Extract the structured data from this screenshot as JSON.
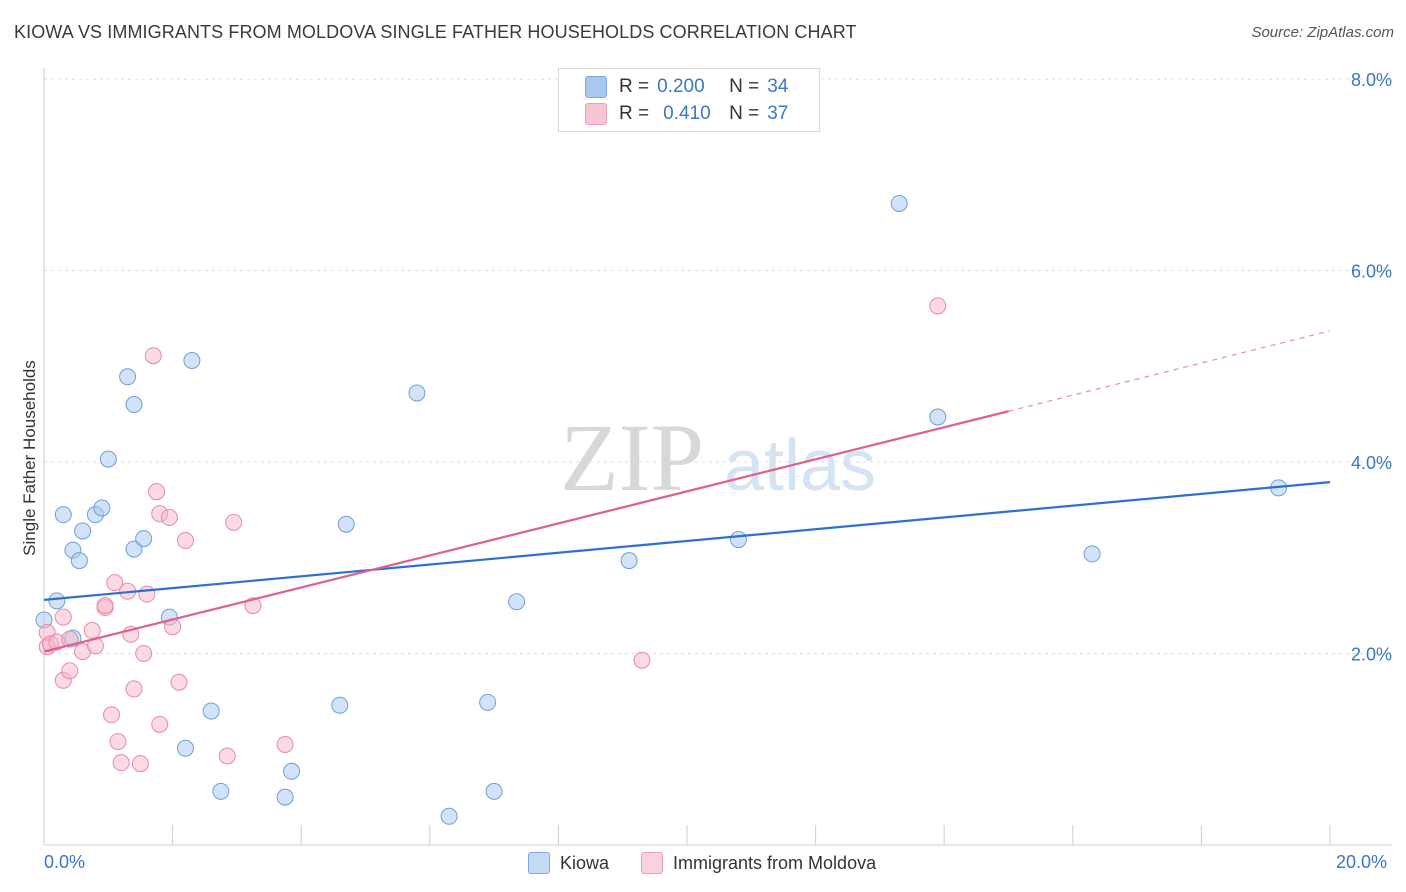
{
  "title": "KIOWA VS IMMIGRANTS FROM MOLDOVA SINGLE FATHER HOUSEHOLDS CORRELATION CHART",
  "source": "Source: ZipAtlas.com",
  "watermark": {
    "zip": "ZIP",
    "atlas": "atlas"
  },
  "legend": {
    "rows": [
      {
        "r_label": "R =",
        "r": "0.200",
        "n_label": "N =",
        "n": "34",
        "color": "#a8c8f0"
      },
      {
        "r_label": "R =",
        "r": "0.410",
        "n_label": "N =",
        "n": "37",
        "color": "#f7b6c8"
      }
    ]
  },
  "bottom_legend": [
    {
      "label": "Kiowa",
      "color": "#a8c8f0"
    },
    {
      "label": "Immigrants from Moldova",
      "color": "#f7b6c8"
    }
  ],
  "x_axis_labels": {
    "min": "0.0%",
    "max": "20.0%"
  },
  "chart_data": {
    "type": "scatter",
    "title": "KIOWA VS IMMIGRANTS FROM MOLDOVA SINGLE FATHER HOUSEHOLDS CORRELATION CHART",
    "xlabel": "",
    "ylabel": "Single Father Households",
    "xlim": [
      0,
      20
    ],
    "ylim": [
      0,
      8
    ],
    "y_ticks": [
      {
        "value": 2,
        "label": "2.0%"
      },
      {
        "value": 4,
        "label": "4.0%"
      },
      {
        "value": 6,
        "label": "6.0%"
      },
      {
        "value": 8,
        "label": "8.0%"
      }
    ],
    "grid": true,
    "series": [
      {
        "name": "Kiowa",
        "color": "#a8c8f0",
        "stroke": "#6f9fd8",
        "line_color": "#2e6fd0",
        "trend": {
          "x0": 0,
          "y0": 2.56,
          "x1": 20,
          "y1": 3.79
        },
        "points": [
          [
            0.2,
            2.55
          ],
          [
            0.0,
            2.35
          ],
          [
            0.3,
            3.45
          ],
          [
            0.6,
            3.28
          ],
          [
            0.45,
            3.08
          ],
          [
            0.8,
            3.45
          ],
          [
            0.55,
            2.97
          ],
          [
            0.9,
            3.52
          ],
          [
            1.4,
            3.09
          ],
          [
            1.55,
            3.2
          ],
          [
            1.0,
            4.03
          ],
          [
            1.4,
            4.6
          ],
          [
            1.3,
            4.89
          ],
          [
            2.3,
            5.06
          ],
          [
            1.95,
            2.38
          ],
          [
            0.45,
            2.16
          ],
          [
            2.6,
            1.4
          ],
          [
            2.2,
            1.01
          ],
          [
            2.75,
            0.56
          ],
          [
            3.75,
            0.5
          ],
          [
            3.85,
            0.77
          ],
          [
            4.6,
            1.46
          ],
          [
            4.7,
            3.35
          ],
          [
            5.8,
            4.72
          ],
          [
            6.3,
            0.3
          ],
          [
            6.9,
            1.49
          ],
          [
            7.0,
            0.56
          ],
          [
            7.35,
            2.54
          ],
          [
            9.1,
            2.97
          ],
          [
            10.8,
            3.19
          ],
          [
            13.3,
            6.7
          ],
          [
            13.9,
            4.47
          ],
          [
            16.3,
            3.04
          ],
          [
            19.2,
            3.73
          ]
        ]
      },
      {
        "name": "Immigrants from Moldova",
        "color": "#f7b6c8",
        "stroke": "#e98aa8",
        "line_color": "#e0608c",
        "trend": {
          "x0": 0,
          "y0": 2.02,
          "x1": 15,
          "y1": 4.53
        },
        "trend_dashed": {
          "x0": 15,
          "y0": 4.53,
          "x1": 20,
          "y1": 5.37
        },
        "points": [
          [
            0.05,
            2.22
          ],
          [
            0.05,
            2.07
          ],
          [
            0.1,
            2.1
          ],
          [
            0.2,
            2.12
          ],
          [
            0.3,
            2.38
          ],
          [
            0.3,
            1.72
          ],
          [
            0.4,
            1.82
          ],
          [
            0.4,
            2.15
          ],
          [
            0.6,
            2.02
          ],
          [
            0.75,
            2.24
          ],
          [
            0.8,
            2.08
          ],
          [
            0.95,
            2.48
          ],
          [
            0.95,
            2.5
          ],
          [
            1.05,
            1.36
          ],
          [
            1.1,
            2.74
          ],
          [
            1.15,
            1.08
          ],
          [
            1.2,
            0.86
          ],
          [
            1.3,
            2.65
          ],
          [
            1.35,
            2.2
          ],
          [
            1.4,
            1.63
          ],
          [
            1.5,
            0.85
          ],
          [
            1.55,
            2.0
          ],
          [
            1.6,
            2.62
          ],
          [
            1.7,
            5.11
          ],
          [
            1.75,
            3.69
          ],
          [
            1.8,
            3.46
          ],
          [
            1.8,
            1.26
          ],
          [
            1.95,
            3.42
          ],
          [
            2.0,
            2.28
          ],
          [
            2.1,
            1.7
          ],
          [
            2.2,
            3.18
          ],
          [
            2.85,
            0.93
          ],
          [
            2.95,
            3.37
          ],
          [
            3.25,
            2.5
          ],
          [
            3.75,
            1.05
          ],
          [
            9.3,
            1.93
          ],
          [
            13.9,
            5.63
          ]
        ]
      }
    ]
  }
}
